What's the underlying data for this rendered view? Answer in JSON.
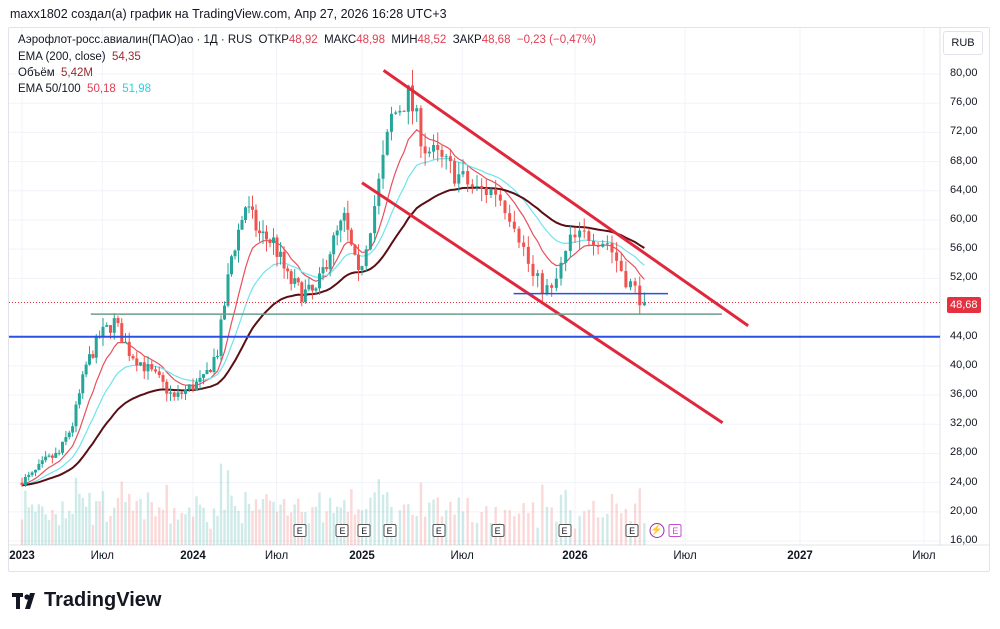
{
  "caption": "maxx1802 создал(а) график на TradingView.com, Апр 27, 2026 16:28 UTC+3",
  "legend": {
    "symbol": "Аэрофлот-росс.авиалин(ПАО)ао · 1Д · RUS",
    "open_label": "ОТКР",
    "open": "48,92",
    "high_label": "МАКС",
    "high": "48,98",
    "low_label": "МИН",
    "low": "48,52",
    "close_label": "ЗАКР",
    "close": "48,68",
    "change": "−0,23 (−0,47%)",
    "ema200_label": "EMA (200, close)",
    "ema200": "54,35",
    "volume_label": "Объём",
    "volume": "5,42M",
    "ema50100_label": "EMA 50/100",
    "ema50": "50,18",
    "ema100": "51,98"
  },
  "currency": "RUB",
  "last_price": "48,68",
  "logo_text": "TradingView",
  "colors": {
    "up": "#26a69a",
    "down": "#ef5350",
    "ema50": "#e8505b",
    "ema100": "#6fe3ee",
    "ema200": "#5a0f14",
    "trend": "#e0283c",
    "support": "#2952e0",
    "level": "#6a9e8a"
  },
  "chart_data": {
    "type": "candlestick",
    "y_ticks": [
      "80,00",
      "76,00",
      "72,00",
      "68,00",
      "64,00",
      "60,00",
      "56,00",
      "52,00",
      "44,00",
      "40,00",
      "36,00",
      "32,00",
      "28,00",
      "24,00",
      "20,00",
      "16,00"
    ],
    "ylim": [
      16,
      80
    ],
    "x_ticks": [
      {
        "label": "2023",
        "date": "2023-01-01",
        "year": true
      },
      {
        "label": "Июл",
        "date": "2023-07-01",
        "year": false
      },
      {
        "label": "2024",
        "date": "2024-01-01",
        "year": true
      },
      {
        "label": "Июл",
        "date": "2024-07-01",
        "year": false
      },
      {
        "label": "2025",
        "date": "2025-01-01",
        "year": true
      },
      {
        "label": "Июл",
        "date": "2025-07-01",
        "year": false
      },
      {
        "label": "2026",
        "date": "2026-01-01",
        "year": true
      },
      {
        "label": "Июл",
        "date": "2026-07-01",
        "year": false
      },
      {
        "label": "2027",
        "date": "2027-01-01",
        "year": true
      },
      {
        "label": "Июл",
        "date": "2027-07-01",
        "year": false
      }
    ],
    "monthly_close": {
      "start": "2023-01",
      "values": [
        25,
        27,
        28,
        32,
        40,
        44,
        46,
        42,
        40,
        38,
        35.5,
        37,
        38,
        42,
        55,
        62,
        58,
        57,
        52,
        50,
        50,
        56,
        60,
        52,
        62,
        74,
        77,
        70,
        68,
        66,
        64,
        64,
        60,
        52,
        50,
        57,
        58,
        57,
        52,
        48.68
      ]
    },
    "drawings": [
      {
        "kind": "trendline",
        "color": "trend",
        "from": [
          "2025-02-09",
          80.5
        ],
        "to": [
          "2026-10-10",
          45.5
        ]
      },
      {
        "kind": "trendline",
        "color": "trend",
        "from": [
          "2025-01-01",
          65.1
        ],
        "to": [
          "2026-08-30",
          32.2
        ]
      },
      {
        "kind": "horizontal",
        "color": "support",
        "price": 44
      },
      {
        "kind": "segment",
        "color": "level",
        "from": [
          "2023-06-05",
          47.1
        ],
        "to": [
          "2026-08-29",
          47.1
        ]
      },
      {
        "kind": "segment",
        "color": "support",
        "from": [
          "2025-09-23",
          49.9
        ],
        "to": [
          "2026-06-03",
          49.9
        ]
      }
    ],
    "events": [
      {
        "type": "earnings",
        "label": "E",
        "date": "2024-08-20"
      },
      {
        "type": "earnings",
        "label": "E",
        "date": "2024-11-20"
      },
      {
        "type": "earnings",
        "label": "E",
        "date": "2025-01-05"
      },
      {
        "type": "earnings",
        "label": "E",
        "date": "2025-02-20"
      },
      {
        "type": "earnings",
        "label": "E",
        "date": "2025-05-20"
      },
      {
        "type": "earnings",
        "label": "E",
        "date": "2025-08-28"
      },
      {
        "type": "earnings",
        "label": "E",
        "date": "2025-12-15"
      },
      {
        "type": "earnings",
        "label": "E",
        "date": "2026-04-05"
      },
      {
        "type": "dividend",
        "label": "⚡",
        "date": "2026-05-15"
      },
      {
        "type": "earnings-future",
        "label": "E",
        "date": "2026-06-15"
      }
    ]
  }
}
